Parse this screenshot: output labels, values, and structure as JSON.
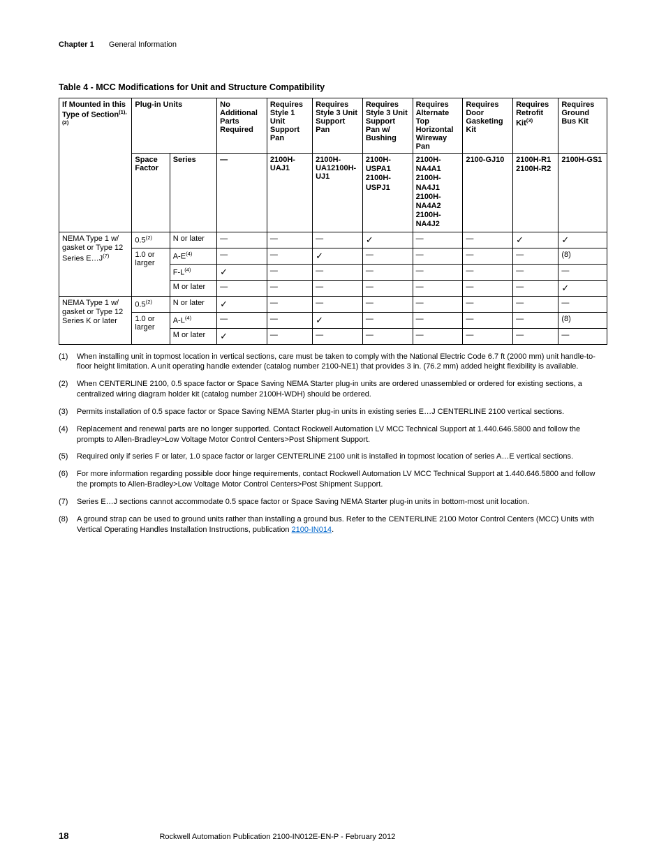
{
  "header": {
    "chapter": "Chapter 1",
    "section": "General Information"
  },
  "tableTitle": "Table 4 - MCC Modifications for Unit and Structure Compatibility",
  "columns": {
    "c0": {
      "label": "If Mounted in this Type of Section",
      "sup": "(1),(2)"
    },
    "c1": {
      "label": "Plug-in Units"
    },
    "c2": {
      "label": "No Additional Parts Required"
    },
    "c3": {
      "label": "Requires Style 1 Unit Support Pan"
    },
    "c4": {
      "label": "Requires Style 3 Unit Support Pan"
    },
    "c5": {
      "label": "Requires Style 3 Unit Support Pan w/ Bushing"
    },
    "c6": {
      "label": "Requires Alternate Top Horizontal Wireway Pan"
    },
    "c7": {
      "label": "Requires Door Gasketing Kit"
    },
    "c8": {
      "label": "Requires Retrofit Kit",
      "sup": "(3)"
    },
    "c9": {
      "label": "Requires Ground Bus Kit"
    }
  },
  "subColumns": {
    "s0": "Space Factor",
    "s1": "Series",
    "s2": "—",
    "s3": "2100H-UAJ1",
    "s4": "2100H-UA12100H-UJ1",
    "s5": "2100H-USPA1\n2100H-USPJ1",
    "s6": "2100H-NA4A1\n2100H-NA4J1\n2100H-NA4A2\n2100H-NA4J2",
    "s7": "2100-GJ10",
    "s8": "2100H-R1\n2100H-R2",
    "s9": "2100H-GS1"
  },
  "groupA": {
    "label": "NEMA Type 1 w/ gasket or Type 12\nSeries E…J",
    "sup": "(7)",
    "sf1": "0.5",
    "sf1sup": "(2)",
    "sf2": "1.0 or larger",
    "rows": [
      {
        "series": "N or later",
        "cells": [
          "—",
          "—",
          "—",
          "✓",
          "—",
          "—",
          "✓",
          "✓"
        ]
      },
      {
        "series": "A-E",
        "seriesSup": "(4)",
        "cells": [
          "—",
          "—",
          "✓",
          "—",
          "—",
          "—",
          "—",
          "(8)"
        ]
      },
      {
        "series": "F-L",
        "seriesSup": "(4)",
        "cells": [
          "✓",
          "—",
          "—",
          "—",
          "—",
          "—",
          "—",
          "—"
        ]
      },
      {
        "series": "M or later",
        "cells": [
          "—",
          "—",
          "—",
          "—",
          "—",
          "—",
          "—",
          "✓"
        ]
      }
    ]
  },
  "groupB": {
    "label": "NEMA Type 1 w/ gasket or Type 12\nSeries K or later",
    "sf1": "0.5",
    "sf1sup": "(2)",
    "sf2": "1.0 or larger",
    "rows": [
      {
        "series": "N or later",
        "cells": [
          "✓",
          "—",
          "—",
          "—",
          "—",
          "—",
          "—",
          "—"
        ]
      },
      {
        "series": "A-L",
        "seriesSup": "(4)",
        "cells": [
          "—",
          "—",
          "✓",
          "—",
          "—",
          "—",
          "—",
          "(8)"
        ]
      },
      {
        "series": "M or later",
        "cells": [
          "✓",
          "—",
          "—",
          "—",
          "—",
          "—",
          "—",
          "—"
        ]
      }
    ]
  },
  "footnotes": [
    {
      "n": "(1)",
      "text": "When installing unit in topmost location in vertical sections, care must be taken to comply with the National Electric Code 6.7 ft (2000 mm) unit handle-to-floor height limitation. A unit operating handle extender (catalog number 2100-NE1) that provides 3 in. (76.2 mm) added height flexibility is available."
    },
    {
      "n": "(2)",
      "text": "When CENTERLINE 2100, 0.5 space factor or Space Saving NEMA Starter plug-in units are ordered unassembled or ordered for existing sections, a centralized wiring diagram holder kit (catalog number 2100H-WDH) should be ordered."
    },
    {
      "n": "(3)",
      "text": "Permits installation of 0.5 space factor or Space Saving NEMA Starter plug-in units in existing series E…J CENTERLINE 2100 vertical sections."
    },
    {
      "n": "(4)",
      "text": "Replacement and renewal parts are no longer supported. Contact Rockwell Automation LV MCC Technical Support at 1.440.646.5800 and follow the prompts to Allen-Bradley>Low Voltage Motor Control Centers>Post Shipment Support."
    },
    {
      "n": "(5)",
      "text": "Required only if series F or later, 1.0 space factor or larger CENTERLINE 2100 unit is installed in topmost location of series A…E vertical sections."
    },
    {
      "n": "(6)",
      "text": "For more information regarding possible door hinge requirements, contact Rockwell Automation LV MCC Technical Support at 1.440.646.5800 and follow the prompts to Allen-Bradley>Low Voltage Motor Control Centers>Post Shipment Support."
    },
    {
      "n": "(7)",
      "text": "Series E…J sections cannot accommodate 0.5 space factor or Space Saving NEMA Starter plug-in units in bottom-most unit location."
    },
    {
      "n": "(8)",
      "text": "A ground strap can be used to ground units rather than installing a ground bus. Refer to the CENTERLINE 2100 Motor Control Centers (MCC) Units with Vertical Operating Handles Installation Instructions, publication ",
      "link": "2100-IN014",
      "after": "."
    }
  ],
  "footer": {
    "page": "18",
    "pub": "Rockwell Automation Publication 2100-IN012E-EN-P - February 2012"
  },
  "colWidths": [
    "96",
    "50",
    "62",
    "66",
    "60",
    "66",
    "66",
    "66",
    "66",
    "60",
    "64"
  ]
}
